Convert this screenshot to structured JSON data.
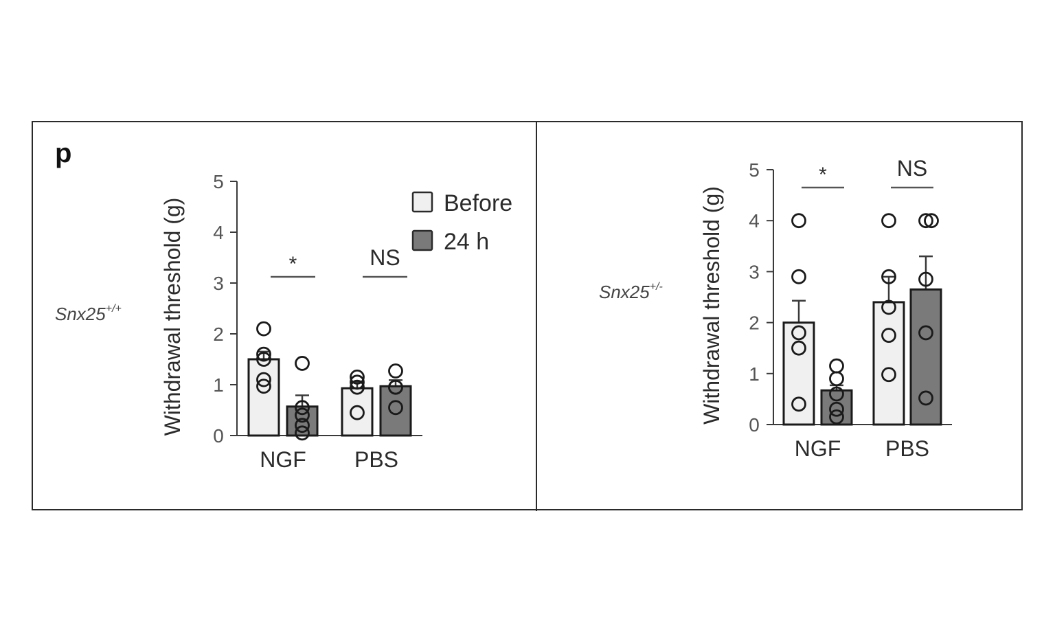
{
  "figure": {
    "panel_letter": "p"
  },
  "chart_data": [
    {
      "type": "bar",
      "title": "",
      "genotype_label": "Snx25",
      "genotype_superscript": "+/+",
      "xlabel": "",
      "ylabel": "Withdrawal threshold (g)",
      "ylim": [
        0,
        5
      ],
      "yticks": [
        0,
        1,
        2,
        3,
        4,
        5
      ],
      "grid": false,
      "legend_position": "top-right",
      "categories": [
        "NGF",
        "PBS"
      ],
      "series": [
        {
          "name": "Before",
          "color": "#f0f0f0",
          "values": [
            1.5,
            0.93
          ],
          "errors": [
            0.15,
            0.12
          ],
          "points": [
            [
              2.1,
              1.6,
              1.5,
              1.1,
              0.97
            ],
            [
              1.15,
              1.05,
              0.95,
              0.45
            ]
          ]
        },
        {
          "name": "24 h",
          "color": "#7a7a7a",
          "values": [
            0.57,
            0.97
          ],
          "errors": [
            0.22,
            0.12
          ],
          "points": [
            [
              1.42,
              0.55,
              0.4,
              0.2,
              0.05
            ],
            [
              1.27,
              0.95,
              0.55,
              0.95
            ]
          ]
        }
      ],
      "annotations": [
        {
          "group": "NGF",
          "text": "*"
        },
        {
          "group": "PBS",
          "text": "NS"
        }
      ]
    },
    {
      "type": "bar",
      "title": "",
      "genotype_label": "Snx25",
      "genotype_superscript": "+/-",
      "xlabel": "",
      "ylabel": "Withdrawal threshold (g)",
      "ylim": [
        0,
        5
      ],
      "yticks": [
        0,
        1,
        2,
        3,
        4,
        5
      ],
      "grid": false,
      "categories": [
        "NGF",
        "PBS"
      ],
      "series": [
        {
          "name": "Before",
          "color": "#f0f0f0",
          "values": [
            2.0,
            2.4
          ],
          "errors": [
            0.43,
            0.5
          ],
          "points": [
            [
              4.0,
              2.9,
              1.8,
              1.5,
              0.4
            ],
            [
              4.0,
              2.9,
              2.3,
              1.75,
              0.98
            ]
          ]
        },
        {
          "name": "24 h",
          "color": "#7a7a7a",
          "values": [
            0.67,
            2.65
          ],
          "errors": [
            0.1,
            0.65
          ],
          "points": [
            [
              1.15,
              0.9,
              0.6,
              0.3,
              0.15
            ],
            [
              4.0,
              4.0,
              2.85,
              1.8,
              0.52
            ]
          ]
        }
      ],
      "annotations": [
        {
          "group": "NGF",
          "text": "*"
        },
        {
          "group": "PBS",
          "text": "NS"
        }
      ]
    }
  ],
  "legend": {
    "items": [
      {
        "label": "Before",
        "color": "#f0f0f0"
      },
      {
        "label": "24 h",
        "color": "#7a7a7a"
      }
    ]
  },
  "colors": {
    "axis": "#3a3a3a",
    "text": "#2b2b2b",
    "frame": "#2a2a2a",
    "bar_before": "#f0f0f0",
    "bar_24h": "#7a7a7a"
  }
}
